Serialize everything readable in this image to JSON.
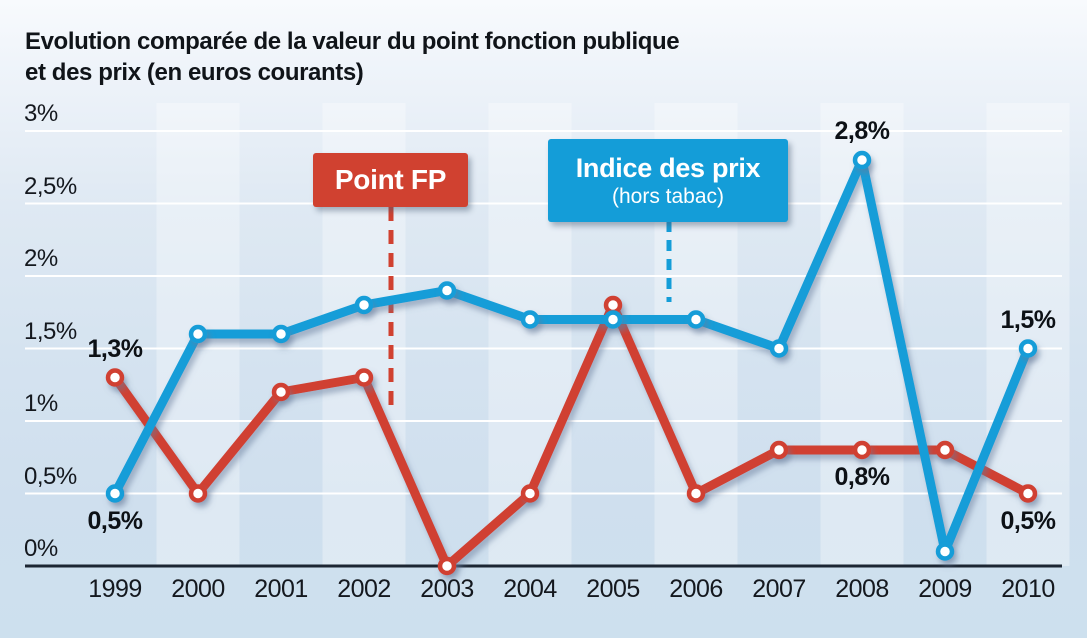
{
  "title": {
    "line1": "Evolution comparée de la valeur du point fonction publique",
    "line2": "et des prix (en euros courants)"
  },
  "legend": {
    "point_fp": {
      "label": "Point FP",
      "color": "#d04130"
    },
    "indice": {
      "label": "Indice des prix",
      "sublabel": "(hors tabac)",
      "color": "#149dd8"
    }
  },
  "colors": {
    "point_fp_line": "#d04130",
    "indice_line": "#149dd8",
    "gridline": "#ffffff",
    "axis": "#1c2633",
    "text": "#14181e",
    "stripe_overlay": "rgba(255,255,255,0.32)"
  },
  "chart_data": {
    "type": "line",
    "x": [
      1999,
      2000,
      2001,
      2002,
      2003,
      2004,
      2005,
      2006,
      2007,
      2008,
      2009,
      2010
    ],
    "xtick_labels": [
      "1999",
      "2000",
      "2001",
      "2002",
      "2003",
      "2004",
      "2005",
      "2006",
      "2007",
      "2008",
      "2009",
      "2010"
    ],
    "series": [
      {
        "name": "Point FP",
        "color": "#d04130",
        "values": [
          1.3,
          0.5,
          1.2,
          1.3,
          0.0,
          0.5,
          1.8,
          0.5,
          0.8,
          0.8,
          0.8,
          0.5
        ]
      },
      {
        "name": "Indice des prix (hors tabac)",
        "color": "#149dd8",
        "values": [
          0.5,
          1.6,
          1.6,
          1.8,
          1.9,
          1.7,
          1.7,
          1.7,
          1.5,
          2.8,
          0.1,
          1.5
        ]
      }
    ],
    "ylim": [
      0,
      3
    ],
    "yticks": {
      "values": [
        0,
        0.5,
        1,
        1.5,
        2,
        2.5,
        3
      ],
      "labels": [
        "0%",
        "0,5%",
        "1%",
        "1,5%",
        "2%",
        "2,5%",
        "3%"
      ]
    },
    "grid": true,
    "legend_position": "inside-top",
    "annotations": [
      {
        "text": "1,3%",
        "series_index": 0,
        "point_index": 0,
        "placement": "above"
      },
      {
        "text": "0,5%",
        "series_index": 1,
        "point_index": 0,
        "placement": "below"
      },
      {
        "text": "2,8%",
        "series_index": 1,
        "point_index": 9,
        "placement": "above"
      },
      {
        "text": "0,8%",
        "series_index": 0,
        "point_index": 9,
        "placement": "below"
      },
      {
        "text": "1,5%",
        "series_index": 1,
        "point_index": 11,
        "placement": "above"
      },
      {
        "text": "0,5%",
        "series_index": 0,
        "point_index": 11,
        "placement": "below"
      }
    ]
  }
}
